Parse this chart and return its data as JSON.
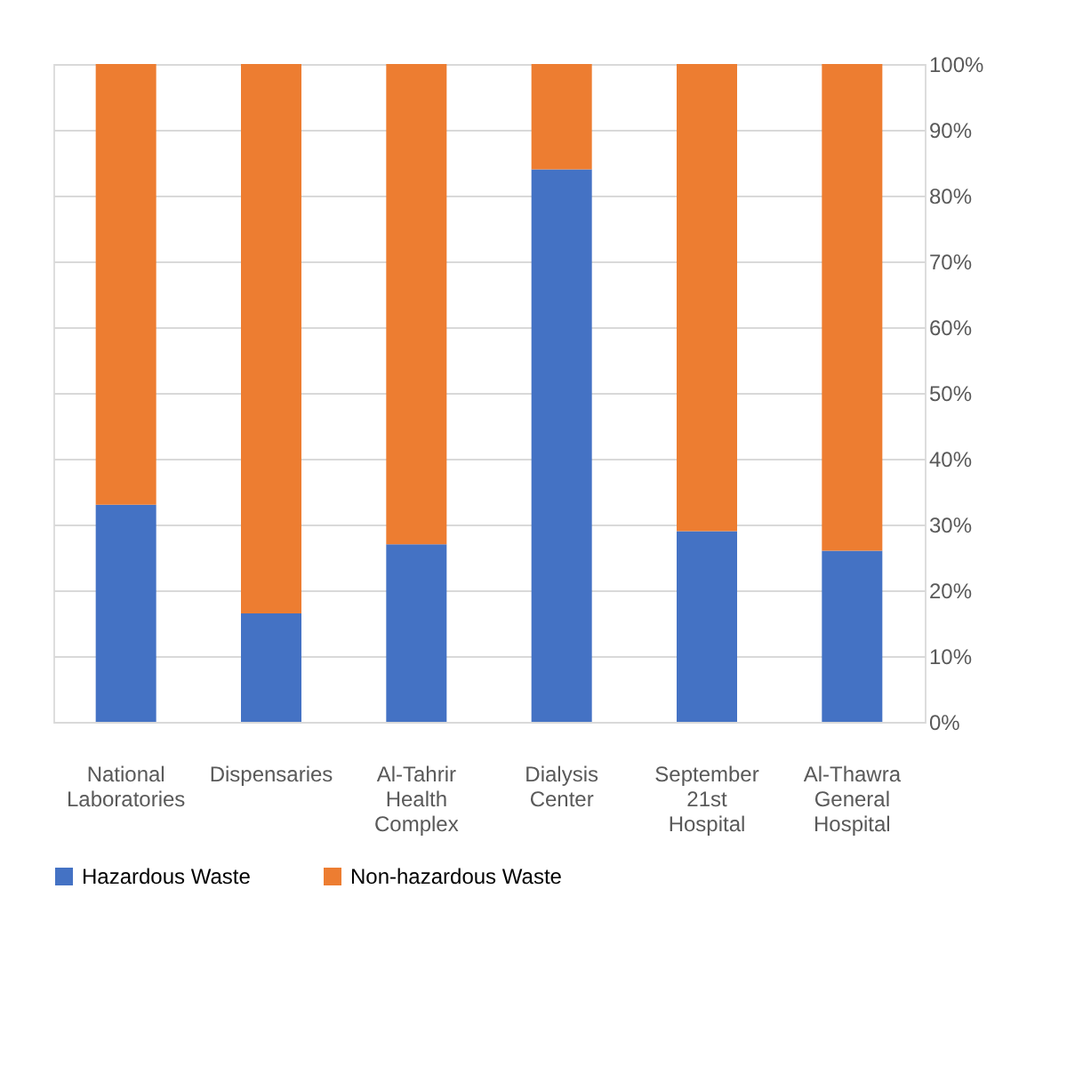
{
  "chart_data": {
    "type": "bar",
    "stacked": true,
    "categories": [
      "National Laboratories",
      "Dispensaries",
      "Al-Tahrir Health Complex",
      "Dialysis Center",
      "September 21st Hospital",
      "Al-Thawra General Hospital"
    ],
    "series": [
      {
        "name": "Hazardous Waste",
        "color": "#4472c4",
        "values": [
          33,
          16.5,
          27,
          84,
          29,
          26
        ]
      },
      {
        "name": "Non-hazardous Waste",
        "color": "#ed7d31",
        "values": [
          67,
          83.5,
          73,
          16,
          71,
          74
        ]
      }
    ],
    "ylim": [
      0,
      100
    ],
    "yticks": [
      {
        "value": 0,
        "label": "0%"
      },
      {
        "value": 10,
        "label": "10%"
      },
      {
        "value": 20,
        "label": "20%"
      },
      {
        "value": 30,
        "label": "30%"
      },
      {
        "value": 40,
        "label": "40%"
      },
      {
        "value": 50,
        "label": "50%"
      },
      {
        "value": 60,
        "label": "60%"
      },
      {
        "value": 70,
        "label": "70%"
      },
      {
        "value": 80,
        "label": "80%"
      },
      {
        "value": 90,
        "label": "90%"
      },
      {
        "value": 100,
        "label": "100%"
      }
    ],
    "grid": "y",
    "legend": "bottom"
  }
}
